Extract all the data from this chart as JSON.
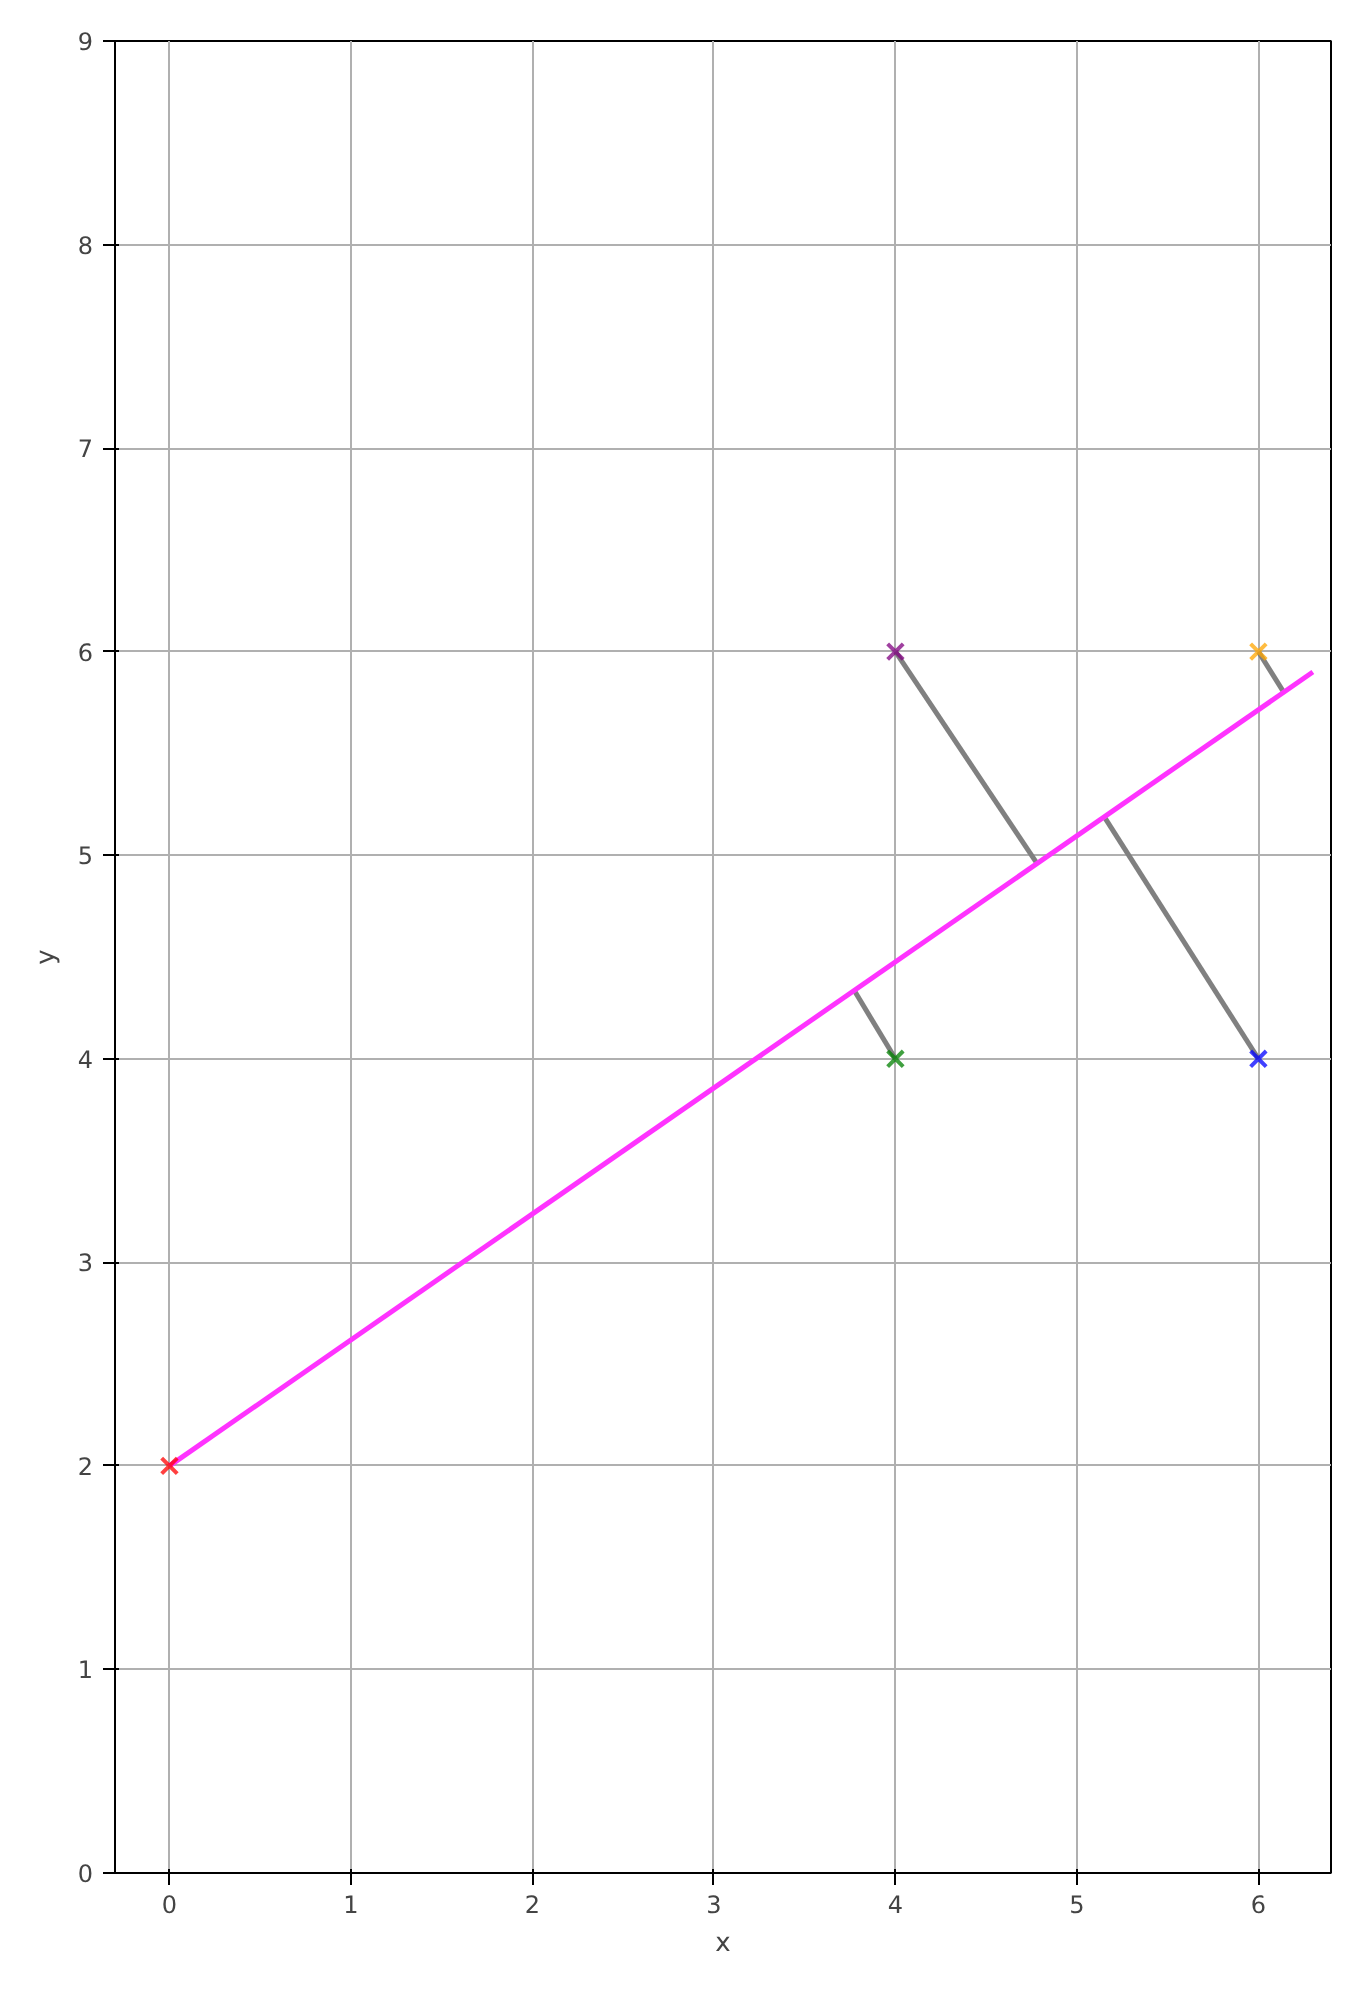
{
  "chart_data": {
    "type": "scatter",
    "xlabel": "x",
    "ylabel": "y",
    "xlim": [
      -0.3,
      6.4
    ],
    "ylim": [
      0,
      9
    ],
    "xticks": [
      0,
      1,
      2,
      3,
      4,
      5,
      6
    ],
    "yticks": [
      0,
      1,
      2,
      3,
      4,
      5,
      6,
      7,
      8,
      9
    ],
    "grid": true,
    "series": [
      {
        "type": "line",
        "color": "#808080",
        "marker": "none",
        "x": [
          4,
          4.78
        ],
        "values": [
          6,
          4.96
        ]
      },
      {
        "type": "line",
        "color": "#808080",
        "marker": "none",
        "x": [
          6,
          5.15
        ],
        "values": [
          4,
          5.19
        ]
      },
      {
        "type": "line",
        "color": "#808080",
        "marker": "none",
        "x": [
          4,
          3.77
        ],
        "values": [
          4,
          4.34
        ]
      },
      {
        "type": "line",
        "color": "#808080",
        "marker": "none",
        "x": [
          6,
          6.14
        ],
        "values": [
          6,
          5.8
        ]
      },
      {
        "type": "line",
        "color": "#ff33ff",
        "marker": "none",
        "x": [
          0,
          6.3
        ],
        "values": [
          2,
          5.9
        ]
      },
      {
        "marker": "cross",
        "x": [
          0,
          4,
          6,
          4,
          6
        ],
        "values": [
          2,
          6,
          6,
          4,
          4
        ],
        "colors": [
          "#ff0000",
          "#800080",
          "#ffa500",
          "#008000",
          "#0000ff"
        ]
      }
    ]
  }
}
